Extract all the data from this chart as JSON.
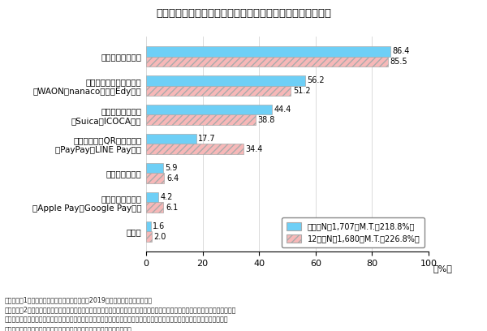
{
  "title": "【図表２】　比較的利用頻度の高いキャッシュレス決済手段",
  "categories": [
    "その他",
    "その他スマホ決済\n（Apple Pay、Google Pay等）",
    "デビットカード",
    "バーコード、QRコード決済\n（PayPay、LINE Pay等）",
    "交通系電子マネー\n（Suica、ICOCA等）",
    "交通系以外の電子マネー\n（WAON、nanaco、楽天Edy等）",
    "クレジットカード"
  ],
  "july_values": [
    1.6,
    4.2,
    5.9,
    17.7,
    44.4,
    56.2,
    86.4
  ],
  "dec_values": [
    2.0,
    6.1,
    6.4,
    34.4,
    38.8,
    51.2,
    85.5
  ],
  "july_color": "#6ecff6",
  "dec_color": "#f7b8b8",
  "dec_hatch": "////",
  "bar_edge_color": "#aaaaaa",
  "xlim": [
    0,
    100
  ],
  "xticks": [
    0,
    20,
    40,
    60,
    80,
    100
  ],
  "xlabel": "（%）",
  "legend_july": "７月（N＝1,707、M.T.＝218.8%）",
  "legend_dec": "12月（N＝1,680、M.T.＝226.8%）",
  "footnote1": "（備考）　1．消費者庁「物価モニター調査」（2019年、確報値）により作成。",
  "footnote2": "　　　　　2．「あなたはキャッシュレス決済をどの程度利用していますか。」との問で「よく利用している」、「ときどき利用して",
  "footnote3": "　　　　　　いる」、「あまり利用していない」と回答した人を対象とした「あなたが比較的利用する頻度の高いキャッシュレス",
  "footnote4": "　　　　　　決済手段は何ですか。」との問に対する回答（複数回答）。"
}
